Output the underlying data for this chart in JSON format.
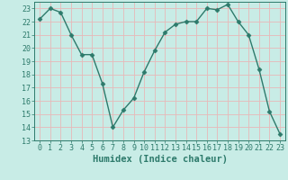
{
  "x": [
    0,
    1,
    2,
    3,
    4,
    5,
    6,
    7,
    8,
    9,
    10,
    11,
    12,
    13,
    14,
    15,
    16,
    17,
    18,
    19,
    20,
    21,
    22,
    23
  ],
  "y": [
    22.2,
    23.0,
    22.7,
    21.0,
    19.5,
    19.5,
    17.3,
    14.0,
    15.3,
    16.2,
    18.2,
    19.8,
    21.2,
    21.8,
    22.0,
    22.0,
    23.0,
    22.9,
    23.3,
    22.0,
    21.0,
    18.4,
    15.2,
    13.5
  ],
  "line_color": "#2d7a6b",
  "marker": "D",
  "marker_size": 2.5,
  "bg_color": "#c8ece6",
  "grid_color": "#e8b8b8",
  "xlabel": "Humidex (Indice chaleur)",
  "xlabel_fontsize": 7.5,
  "tick_fontsize": 6,
  "ylim": [
    13,
    23.5
  ],
  "xlim": [
    -0.5,
    23.5
  ],
  "yticks": [
    13,
    14,
    15,
    16,
    17,
    18,
    19,
    20,
    21,
    22,
    23
  ],
  "xticks": [
    0,
    1,
    2,
    3,
    4,
    5,
    6,
    7,
    8,
    9,
    10,
    11,
    12,
    13,
    14,
    15,
    16,
    17,
    18,
    19,
    20,
    21,
    22,
    23
  ],
  "line_width": 1.0
}
